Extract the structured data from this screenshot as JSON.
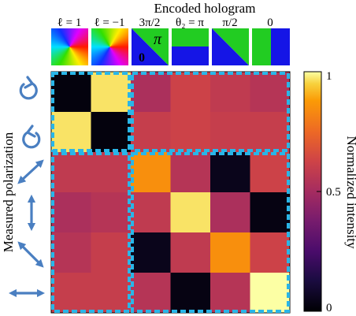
{
  "chart_data": {
    "type": "heatmap",
    "title": "Encoded hologram",
    "ylabel": "Measured polarization",
    "colorbar_label": "Normalized intensity",
    "colorbar_ticks": [
      "0",
      "0.5",
      "1"
    ],
    "colorbar_range": [
      0,
      1
    ],
    "colormap": "inferno",
    "columns": [
      {
        "label": "ℓ = 1",
        "icon": "vortex-phase-l1"
      },
      {
        "label": "ℓ = −1",
        "icon": "vortex-phase-l-minus-1"
      },
      {
        "label": "3π/2",
        "icon": "diagonal-phase-3pi2",
        "inner_labels": [
          "π",
          "0"
        ]
      },
      {
        "label": "θ₂ = π",
        "icon": "horizontal-split-phase"
      },
      {
        "label": "π/2",
        "icon": "diagonal-split-phase"
      },
      {
        "label": "0",
        "icon": "vertical-split-phase"
      }
    ],
    "rows": [
      {
        "polarization": "right-circular",
        "icon": "circular-arrow-clockwise-icon"
      },
      {
        "polarization": "left-circular",
        "icon": "circular-arrow-counterclockwise-icon"
      },
      {
        "polarization": "diagonal",
        "icon": "diagonal-double-arrow-icon"
      },
      {
        "polarization": "vertical",
        "icon": "vertical-double-arrow-icon"
      },
      {
        "polarization": "anti-diagonal",
        "icon": "antidiagonal-double-arrow-icon"
      },
      {
        "polarization": "horizontal",
        "icon": "horizontal-double-arrow-icon"
      }
    ],
    "values": [
      [
        0.02,
        0.97,
        0.52,
        0.62,
        0.58,
        0.55
      ],
      [
        0.97,
        0.02,
        0.6,
        0.62,
        0.6,
        0.6
      ],
      [
        0.58,
        0.58,
        0.85,
        0.55,
        0.05,
        0.62
      ],
      [
        0.52,
        0.55,
        0.58,
        0.97,
        0.52,
        0.03
      ],
      [
        0.55,
        0.6,
        0.05,
        0.58,
        0.85,
        0.62
      ],
      [
        0.6,
        0.6,
        0.55,
        0.03,
        0.55,
        1.0
      ]
    ],
    "highlight_blocks": [
      {
        "rows": [
          0,
          1
        ],
        "cols": [
          0,
          1
        ]
      },
      {
        "rows": [
          0,
          1
        ],
        "cols": [
          2,
          5
        ]
      },
      {
        "rows": [
          2,
          5
        ],
        "cols": [
          0,
          1
        ]
      },
      {
        "rows": [
          2,
          5
        ],
        "cols": [
          2,
          5
        ]
      }
    ],
    "highlight_color": "#29b6e8",
    "icon_color": "#4a7fc1"
  }
}
